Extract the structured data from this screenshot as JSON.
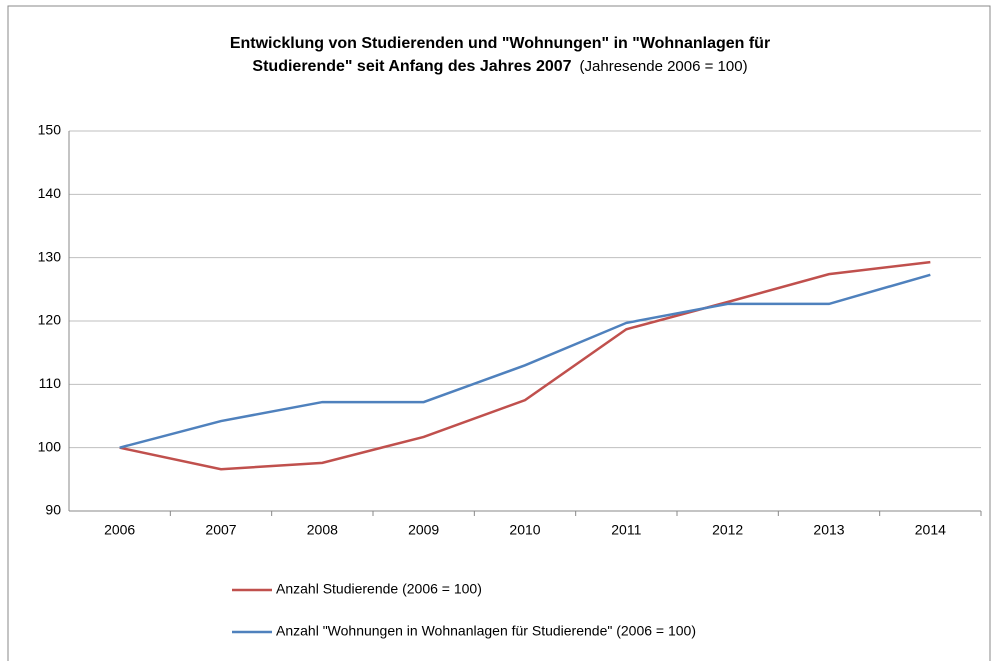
{
  "chart_data": {
    "type": "line",
    "title": [
      "Entwicklung von Studierenden und \"Wohnungen\" in \"Wohnanlagen für",
      "Studierende\" seit Anfang des Jahres 2007"
    ],
    "subtitle": "(Jahresende 2006 = 100)",
    "categories": [
      "2006",
      "2007",
      "2008",
      "2009",
      "2010",
      "2011",
      "2012",
      "2013",
      "2014"
    ],
    "series": [
      {
        "name": "Anzahl Studierende (2006 = 100)",
        "color": "#c0504d",
        "values": [
          100,
          96.6,
          97.6,
          101.7,
          107.5,
          118.7,
          123,
          127.4,
          129.3
        ]
      },
      {
        "name": "Anzahl \"Wohnungen in Wohnanlagen für Studierende\" (2006 = 100)",
        "color": "#4f81bd",
        "values": [
          100,
          104.2,
          107.2,
          107.2,
          113,
          119.7,
          122.7,
          122.7,
          127.3
        ]
      }
    ],
    "ylim": [
      90,
      150
    ],
    "yticks": [
      90,
      100,
      110,
      120,
      130,
      140,
      150
    ],
    "grid": true
  }
}
